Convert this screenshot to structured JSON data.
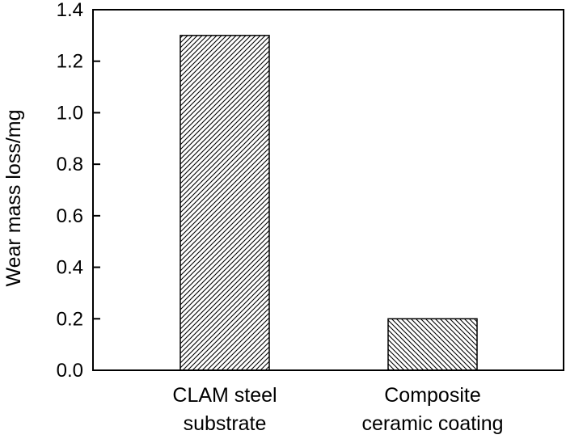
{
  "chart_data": {
    "type": "bar",
    "title": "",
    "xlabel": "",
    "ylabel": "Wear mass loss/mg",
    "ylim": [
      0,
      1.4
    ],
    "yticks": [
      "0.0",
      "0.2",
      "0.4",
      "0.6",
      "0.8",
      "1.0",
      "1.2",
      "1.4"
    ],
    "categories": [
      [
        "CLAM steel",
        "substrate"
      ],
      [
        "Composite",
        "ceramic coating"
      ]
    ],
    "values": [
      1.3,
      0.2
    ],
    "patterns": [
      "hatch-forward",
      "hatch-backward"
    ],
    "bar_fill": "#ffffff",
    "bar_stroke": "#000000",
    "grid": false,
    "legend": "none"
  }
}
